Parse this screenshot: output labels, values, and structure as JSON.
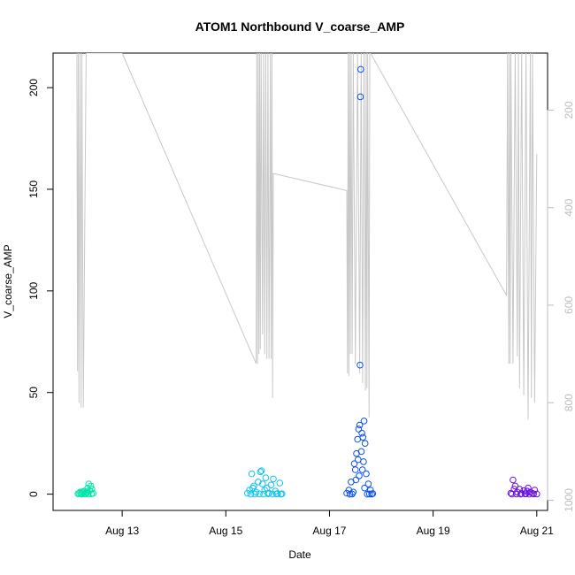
{
  "chart_data": {
    "type": "scatter",
    "title": "ATOM1 Northbound V_coarse_AMP",
    "xlabel": "Date",
    "ylabel": "V_coarse_AMP",
    "x_range": [
      "2024-08-11 16:00",
      "2024-08-21 05:00"
    ],
    "ylim": [
      -8,
      217
    ],
    "y_ticks": [
      0,
      50,
      100,
      150,
      200
    ],
    "x_ticks": [
      {
        "date": "2024-08-13 00:00",
        "label": "Aug 13"
      },
      {
        "date": "2024-08-15 00:00",
        "label": "Aug 15"
      },
      {
        "date": "2024-08-17 00:00",
        "label": "Aug 17"
      },
      {
        "date": "2024-08-19 00:00",
        "label": "Aug 19"
      },
      {
        "date": "2024-08-21 00:00",
        "label": "Aug 21"
      }
    ],
    "secondary_y": {
      "reversed": true,
      "ticks": [
        200,
        400,
        600,
        800,
        1000
      ],
      "range": [
        83,
        1021
      ],
      "color": "#bdbdbd"
    },
    "series": [
      {
        "color": "#00e6a8",
        "points": [
          [
            "2024-08-12 04:00",
            0.5
          ],
          [
            "2024-08-12 04:30",
            1.0
          ],
          [
            "2024-08-12 05:00",
            0.3
          ],
          [
            "2024-08-12 05:30",
            1.2
          ],
          [
            "2024-08-12 06:00",
            0.6
          ],
          [
            "2024-08-12 06:30",
            1.5
          ],
          [
            "2024-08-12 07:00",
            0.2
          ],
          [
            "2024-08-12 07:30",
            0.8
          ],
          [
            "2024-08-12 08:00",
            3.0
          ],
          [
            "2024-08-12 08:30",
            5.0
          ],
          [
            "2024-08-12 09:00",
            1.8
          ],
          [
            "2024-08-12 09:30",
            4.0
          ],
          [
            "2024-08-12 10:00",
            2.5
          ],
          [
            "2024-08-12 10:30",
            0.4
          ],
          [
            "2024-08-12 03:30",
            0.2
          ],
          [
            "2024-08-12 05:15",
            0.0
          ],
          [
            "2024-08-12 06:45",
            0.1
          ],
          [
            "2024-08-12 08:15",
            0.0
          ],
          [
            "2024-08-12 09:45",
            0.2
          ],
          [
            "2024-08-12 07:45",
            1.0
          ]
        ]
      },
      {
        "color": "#10c4f0",
        "points": [
          [
            "2024-08-15 10:00",
            0.5
          ],
          [
            "2024-08-15 11:00",
            2.0
          ],
          [
            "2024-08-15 12:00",
            10.0
          ],
          [
            "2024-08-15 13:00",
            4.0
          ],
          [
            "2024-08-15 14:00",
            1.0
          ],
          [
            "2024-08-15 15:00",
            6.0
          ],
          [
            "2024-08-15 16:00",
            11.0
          ],
          [
            "2024-08-15 16:30",
            11.5
          ],
          [
            "2024-08-15 17:00",
            5.0
          ],
          [
            "2024-08-15 18:00",
            2.0
          ],
          [
            "2024-08-15 19:00",
            3.0
          ],
          [
            "2024-08-15 20:00",
            0.5
          ],
          [
            "2024-08-15 21:00",
            4.5
          ],
          [
            "2024-08-15 22:00",
            7.5
          ],
          [
            "2024-08-15 23:00",
            1.5
          ],
          [
            "2024-08-16 00:00",
            0.3
          ],
          [
            "2024-08-16 01:00",
            5.5
          ],
          [
            "2024-08-16 02:00",
            0.2
          ],
          [
            "2024-08-15 11:30",
            0.0
          ],
          [
            "2024-08-15 13:30",
            0.0
          ],
          [
            "2024-08-15 15:30",
            0.1
          ],
          [
            "2024-08-15 17:30",
            0.0
          ],
          [
            "2024-08-15 19:30",
            0.2
          ],
          [
            "2024-08-15 21:30",
            0.0
          ],
          [
            "2024-08-15 23:30",
            0.1
          ],
          [
            "2024-08-16 01:30",
            0.0
          ],
          [
            "2024-08-15 12:30",
            3.0
          ],
          [
            "2024-08-15 18:30",
            8.0
          ]
        ]
      },
      {
        "color": "#0a50f0",
        "points": [
          [
            "2024-08-17 08:00",
            0.5
          ],
          [
            "2024-08-17 09:00",
            2.0
          ],
          [
            "2024-08-17 10:00",
            6.0
          ],
          [
            "2024-08-17 11:00",
            1.0
          ],
          [
            "2024-08-17 12:00",
            12.0
          ],
          [
            "2024-08-17 12:30",
            20.0
          ],
          [
            "2024-08-17 13:00",
            27.0
          ],
          [
            "2024-08-17 13:30",
            32.0
          ],
          [
            "2024-08-17 14:00",
            34.0
          ],
          [
            "2024-08-17 14:10",
            63.5
          ],
          [
            "2024-08-17 14:20",
            195.5
          ],
          [
            "2024-08-17 14:30",
            209.0
          ],
          [
            "2024-08-17 15:00",
            30.0
          ],
          [
            "2024-08-17 15:30",
            28.0
          ],
          [
            "2024-08-17 16:00",
            36.0
          ],
          [
            "2024-08-17 16:30",
            25.0
          ],
          [
            "2024-08-17 17:00",
            10.0
          ],
          [
            "2024-08-17 18:00",
            5.0
          ],
          [
            "2024-08-17 19:00",
            2.0
          ],
          [
            "2024-08-17 20:00",
            0.3
          ],
          [
            "2024-08-17 11:30",
            15.0
          ],
          [
            "2024-08-17 13:15",
            17.0
          ],
          [
            "2024-08-17 14:45",
            21.0
          ],
          [
            "2024-08-17 15:45",
            16.0
          ],
          [
            "2024-08-17 09:30",
            0.0
          ],
          [
            "2024-08-17 10:30",
            0.1
          ],
          [
            "2024-08-17 12:15",
            7.0
          ],
          [
            "2024-08-17 16:15",
            3.0
          ],
          [
            "2024-08-17 17:30",
            0.0
          ],
          [
            "2024-08-17 18:30",
            0.1
          ],
          [
            "2024-08-17 19:30",
            0.0
          ],
          [
            "2024-08-17 13:45",
            9.0
          ],
          [
            "2024-08-17 15:15",
            12.0
          ]
        ]
      },
      {
        "color": "#6a10e6",
        "points": [
          [
            "2024-08-20 12:00",
            0.5
          ],
          [
            "2024-08-20 13:00",
            7.0
          ],
          [
            "2024-08-20 14:00",
            4.0
          ],
          [
            "2024-08-20 15:00",
            1.0
          ],
          [
            "2024-08-20 16:00",
            2.5
          ],
          [
            "2024-08-20 17:00",
            0.3
          ],
          [
            "2024-08-20 18:00",
            1.8
          ],
          [
            "2024-08-20 19:00",
            0.2
          ],
          [
            "2024-08-20 20:00",
            3.0
          ],
          [
            "2024-08-20 21:00",
            1.0
          ],
          [
            "2024-08-20 22:00",
            0.4
          ],
          [
            "2024-08-20 23:00",
            2.0
          ],
          [
            "2024-08-21 00:00",
            0.1
          ],
          [
            "2024-08-20 12:30",
            0.0
          ],
          [
            "2024-08-20 14:30",
            0.1
          ],
          [
            "2024-08-20 16:30",
            0.0
          ],
          [
            "2024-08-20 18:30",
            0.2
          ],
          [
            "2024-08-20 20:30",
            0.0
          ],
          [
            "2024-08-20 22:30",
            0.1
          ],
          [
            "2024-08-20 13:30",
            2.5
          ],
          [
            "2024-08-20 19:30",
            1.5
          ]
        ]
      }
    ],
    "secondary_line": {
      "color": "#c8c8c8",
      "points": [
        [
          "2024-08-12 03:00",
          83
        ],
        [
          "2024-08-12 03:20",
          735
        ],
        [
          "2024-08-12 03:40",
          83
        ],
        [
          "2024-08-12 04:00",
          800
        ],
        [
          "2024-08-12 04:30",
          83
        ],
        [
          "2024-08-12 05:00",
          810
        ],
        [
          "2024-08-12 05:20",
          83
        ],
        [
          "2024-08-12 06:00",
          810
        ],
        [
          "2024-08-12 07:20",
          83
        ],
        [
          "2024-08-12 08:30",
          83
        ],
        [
          "2024-08-12 09:00",
          83
        ],
        [
          "2024-08-13 00:00",
          83
        ],
        [
          "2024-08-15 14:00",
          720
        ],
        [
          "2024-08-15 14:20",
          83
        ],
        [
          "2024-08-15 14:40",
          720
        ],
        [
          "2024-08-15 15:00",
          83
        ],
        [
          "2024-08-15 15:20",
          700
        ],
        [
          "2024-08-15 15:40",
          83
        ],
        [
          "2024-08-15 16:00",
          690
        ],
        [
          "2024-08-15 16:20",
          83
        ],
        [
          "2024-08-15 17:00",
          660
        ],
        [
          "2024-08-15 17:30",
          83
        ],
        [
          "2024-08-15 18:00",
          700
        ],
        [
          "2024-08-15 18:30",
          83
        ],
        [
          "2024-08-15 19:00",
          710
        ],
        [
          "2024-08-15 19:30",
          83
        ],
        [
          "2024-08-15 20:00",
          710
        ],
        [
          "2024-08-15 20:15",
          500
        ],
        [
          "2024-08-15 20:40",
          83
        ],
        [
          "2024-08-15 21:00",
          710
        ],
        [
          "2024-08-15 21:20",
          83
        ],
        [
          "2024-08-15 21:40",
          790
        ],
        [
          "2024-08-15 22:00",
          330
        ],
        [
          "2024-08-17 08:00",
          365
        ],
        [
          "2024-08-17 08:20",
          740
        ],
        [
          "2024-08-17 08:40",
          83
        ],
        [
          "2024-08-17 09:00",
          745
        ],
        [
          "2024-08-17 09:20",
          83
        ],
        [
          "2024-08-17 09:40",
          700
        ],
        [
          "2024-08-17 10:00",
          83
        ],
        [
          "2024-08-17 10:30",
          700
        ],
        [
          "2024-08-17 11:00",
          83
        ],
        [
          "2024-08-17 12:00",
          720
        ],
        [
          "2024-08-17 13:00",
          83
        ],
        [
          "2024-08-17 14:00",
          740
        ],
        [
          "2024-08-17 14:40",
          83
        ],
        [
          "2024-08-17 15:20",
          760
        ],
        [
          "2024-08-17 16:00",
          83
        ],
        [
          "2024-08-17 16:40",
          775
        ],
        [
          "2024-08-17 17:00",
          83
        ],
        [
          "2024-08-17 17:20",
          770
        ],
        [
          "2024-08-17 17:40",
          83
        ],
        [
          "2024-08-17 18:20",
          830
        ],
        [
          "2024-08-17 18:40",
          83
        ],
        [
          "2024-08-17 19:00",
          83
        ],
        [
          "2024-08-20 10:00",
          580
        ],
        [
          "2024-08-20 10:30",
          83
        ],
        [
          "2024-08-20 11:00",
          720
        ],
        [
          "2024-08-20 11:20",
          83
        ],
        [
          "2024-08-20 11:40",
          720
        ],
        [
          "2024-08-20 12:00",
          83
        ],
        [
          "2024-08-20 13:00",
          720
        ],
        [
          "2024-08-20 14:00",
          83
        ],
        [
          "2024-08-20 15:00",
          705
        ],
        [
          "2024-08-20 15:30",
          83
        ],
        [
          "2024-08-20 16:00",
          770
        ],
        [
          "2024-08-20 17:00",
          83
        ],
        [
          "2024-08-20 18:00",
          785
        ],
        [
          "2024-08-20 19:00",
          83
        ],
        [
          "2024-08-20 20:00",
          835
        ],
        [
          "2024-08-20 21:00",
          83
        ],
        [
          "2024-08-20 21:30",
          790
        ],
        [
          "2024-08-20 22:00",
          83
        ],
        [
          "2024-08-20 23:00",
          800
        ],
        [
          "2024-08-21 00:00",
          290
        ]
      ]
    }
  }
}
